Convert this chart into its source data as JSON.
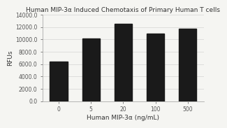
{
  "title": "Human MIP-3α Induced Chemotaxis of Primary Human T cells",
  "xlabel": "Human MIP-3α (ng/mL)",
  "ylabel": "RFUs",
  "categories": [
    "0",
    "5",
    "20",
    "100",
    "500"
  ],
  "values": [
    6400,
    10100,
    12500,
    11000,
    11700
  ],
  "bar_color": "#1a1a1a",
  "ylim": [
    0,
    14000
  ],
  "yticks": [
    0,
    2000,
    4000,
    6000,
    8000,
    10000,
    12000,
    14000
  ],
  "ytick_labels": [
    "0.0",
    "2000.0",
    "4000.0",
    "6000.0",
    "8000.0",
    "10000.0",
    "12000.0",
    "14000.0"
  ],
  "title_fontsize": 6.5,
  "axis_label_fontsize": 6.5,
  "tick_fontsize": 5.5,
  "background_color": "#f5f5f2",
  "bar_width": 0.55
}
